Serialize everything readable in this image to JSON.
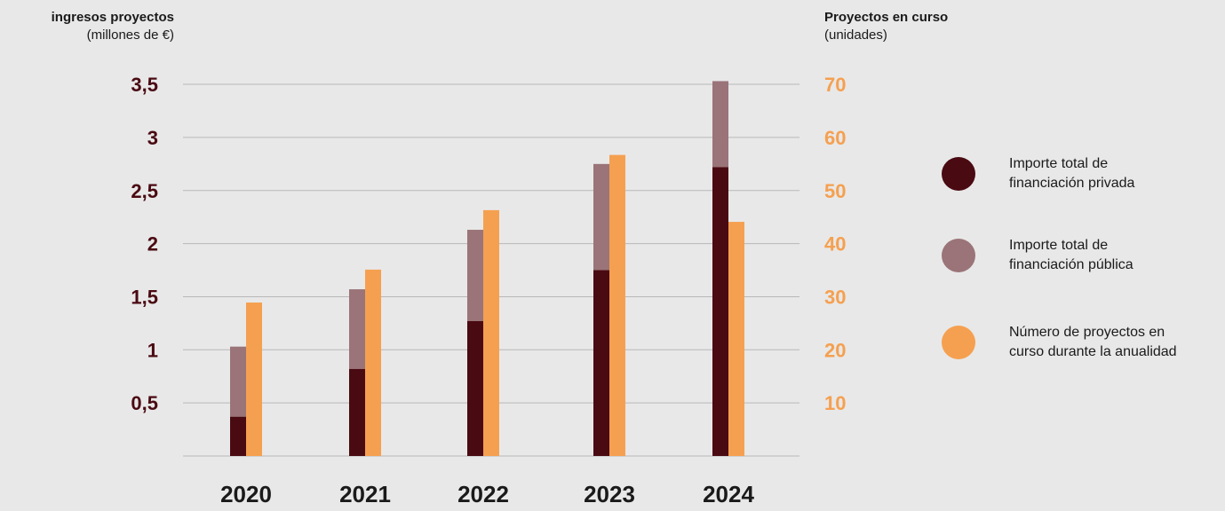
{
  "colors": {
    "private": "#4a0a12",
    "public": "#9a7478",
    "projects": "#f5a050",
    "left_axis_text": "#4a0a12",
    "right_axis_text": "#f5a050",
    "grid": "#b8b8b8"
  },
  "left_axis": {
    "title": "ingresos proyectos",
    "unit": "(millones de €)"
  },
  "right_axis": {
    "title": "Proyectos en curso",
    "unit": "(unidades)"
  },
  "legend": [
    {
      "label": "Importe total de\nfinanciación privada",
      "series": "private"
    },
    {
      "label": "Importe total de\nfinanciación pública",
      "series": "public"
    },
    {
      "label": "Número de proyectos en\ncurso durante la anualidad",
      "series": "projects"
    }
  ],
  "chart_data": {
    "type": "bar",
    "categories": [
      "2020",
      "2021",
      "2022",
      "2023",
      "2024"
    ],
    "series": [
      {
        "name": "Importe total de financiación privada",
        "key": "private",
        "axis": "left",
        "stack": "funding",
        "values": [
          0.37,
          0.82,
          1.27,
          1.75,
          2.72
        ]
      },
      {
        "name": "Importe total de financiación pública",
        "key": "public",
        "axis": "left",
        "stack": "funding",
        "values": [
          0.66,
          0.75,
          0.86,
          1.0,
          0.81
        ]
      },
      {
        "name": "Número de proyectos en curso durante la anualidad",
        "key": "projects",
        "axis": "right",
        "values": [
          28.9,
          35.1,
          46.3,
          56.7,
          44.1
        ]
      }
    ],
    "left_ylim": [
      0,
      3.5
    ],
    "left_ticks": [
      "0,5",
      "1",
      "1,5",
      "2",
      "2,5",
      "3",
      "3,5"
    ],
    "left_tick_values": [
      0.5,
      1,
      1.5,
      2,
      2.5,
      3,
      3.5
    ],
    "right_ylim": [
      0,
      70
    ],
    "right_ticks": [
      "10",
      "20",
      "30",
      "40",
      "50",
      "60",
      "70"
    ],
    "right_tick_values": [
      10,
      20,
      30,
      40,
      50,
      60,
      70
    ],
    "grid": true,
    "legend_position": "right"
  }
}
